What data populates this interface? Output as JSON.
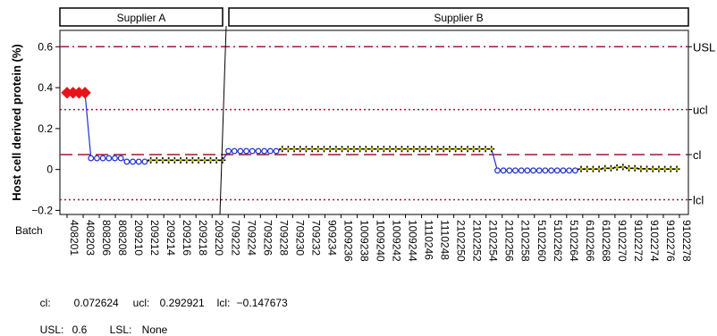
{
  "chart_data": {
    "type": "line",
    "ylabel": "Host cell derived protein (%)",
    "xlabel": "Batch",
    "ylim": [
      -0.22,
      0.68
    ],
    "yticks": [
      -0.2,
      0,
      0.2,
      0.4,
      0.6
    ],
    "ytick_labels": [
      "−0.2",
      "0",
      "0.2",
      "0.4",
      "0.6"
    ],
    "groups": [
      {
        "name": "Supplier A",
        "count": 17
      },
      {
        "name": "Supplier B",
        "count": 57
      }
    ],
    "x_labels": [
      "408201",
      "408203",
      "808206",
      "808208",
      "209210",
      "209212",
      "209214",
      "209216",
      "209218",
      "209220",
      "709222",
      "709224",
      "709226",
      "709228",
      "709230",
      "709232",
      "909234",
      "1009236",
      "1009238",
      "1009240",
      "1009242",
      "1009244",
      "1110246",
      "1110248",
      "2102250",
      "2102252",
      "2102254",
      "2102256",
      "2102258",
      "5102260",
      "5102262",
      "5102264",
      "6102266",
      "6102268",
      "9102270",
      "9102272",
      "9102274",
      "9102276",
      "9102278"
    ],
    "values": [
      0.375,
      0.375,
      0.375,
      0.375,
      0.055,
      0.055,
      0.055,
      0.055,
      0.055,
      0.055,
      0.038,
      0.038,
      0.038,
      0.038,
      0.045,
      0.045,
      0.045,
      0.045,
      0.045,
      0.045,
      0.045,
      0.045,
      0.045,
      0.045,
      0.045,
      0.045,
      0.045,
      0.09,
      0.09,
      0.09,
      0.09,
      0.09,
      0.09,
      0.09,
      0.09,
      0.09,
      0.1,
      0.1,
      0.1,
      0.1,
      0.1,
      0.1,
      0.1,
      0.1,
      0.1,
      0.1,
      0.1,
      0.1,
      0.1,
      0.1,
      0.1,
      0.1,
      0.1,
      0.1,
      0.1,
      0.1,
      0.1,
      0.1,
      0.1,
      0.1,
      0.1,
      0.1,
      0.1,
      0.1,
      0.1,
      0.1,
      0.1,
      0.1,
      0.1,
      0.1,
      0.1,
      0.1,
      -0.005,
      -0.005,
      -0.005,
      -0.005,
      -0.005,
      -0.005,
      -0.005,
      -0.005,
      -0.005,
      -0.005,
      -0.005,
      -0.005,
      -0.005,
      -0.005,
      0.002,
      0.002,
      0.002,
      0.002,
      0.006,
      0.006,
      0.01,
      0.012,
      0.006,
      0.006,
      0.003,
      0.003,
      0.002,
      0.002,
      0.002,
      0.002,
      0.002
    ],
    "segments": [
      {
        "from": 0,
        "to": 3,
        "color": "#e8141a",
        "marker": "diamond"
      },
      {
        "from": 4,
        "to": 13,
        "color": "#1f2fd0",
        "marker": "circle"
      },
      {
        "from": 14,
        "to": 26,
        "color": "#c9c400",
        "marker": "plus"
      },
      {
        "from": 27,
        "to": 35,
        "color": "#1f2fd0",
        "marker": "circle"
      },
      {
        "from": 36,
        "to": 71,
        "color": "#c9c400",
        "marker": "plus"
      },
      {
        "from": 72,
        "to": 85,
        "color": "#1f2fd0",
        "marker": "circle"
      },
      {
        "from": 86,
        "to": 104,
        "color": "#c9c400",
        "marker": "plus"
      }
    ],
    "limits": [
      {
        "label": "USL",
        "value": 0.6,
        "style": "dashdot",
        "color": "#a3172f"
      },
      {
        "label": "ucl",
        "value": 0.292921,
        "style": "dotted",
        "color": "#a3172f"
      },
      {
        "label": "cl",
        "value": 0.072624,
        "style": "dashed",
        "color": "#a3172f"
      },
      {
        "label": "lcl",
        "value": -0.147673,
        "style": "dotted",
        "color": "#a3172f"
      }
    ],
    "cl_group_a": 0.072624,
    "grid": false
  },
  "footer": {
    "cl_label": "cl:",
    "cl_value": "0.072624",
    "ucl_label": "ucl:",
    "ucl_value": "0.292921",
    "lcl_label": "lcl:",
    "lcl_value": "−0.147673",
    "usl_label": "USL:",
    "usl_value": "0.6",
    "lsl_label": "LSL:",
    "lsl_value": "None"
  }
}
